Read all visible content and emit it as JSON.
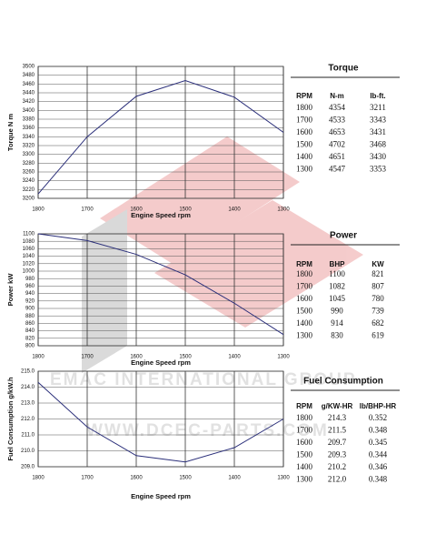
{
  "chart_data": [
    {
      "type": "line",
      "ylabel": "Torque  N m",
      "xlabel": "Engine Speed rpm",
      "x": [
        1800,
        1700,
        1600,
        1500,
        1400,
        1300
      ],
      "xlim": [
        1800,
        1300
      ],
      "xticks": [
        1800,
        1700,
        1600,
        1500,
        1400,
        1300
      ],
      "series": [
        {
          "color": "#2b2f7a",
          "values": [
            3210,
            3340,
            3432,
            3468,
            3430,
            3350
          ]
        }
      ],
      "ylim": [
        3200,
        3500
      ],
      "yticks": [
        3200,
        3220,
        3240,
        3260,
        3280,
        3300,
        3320,
        3340,
        3360,
        3380,
        3400,
        3420,
        3440,
        3460,
        3480,
        3500
      ],
      "grid": true
    },
    {
      "type": "line",
      "ylabel": "Power  kW",
      "xlabel": "Engine Speed rpm",
      "x": [
        1800,
        1700,
        1600,
        1500,
        1400,
        1300
      ],
      "xlim": [
        1800,
        1300
      ],
      "xticks": [
        1800,
        1700,
        1600,
        1500,
        1400,
        1300
      ],
      "series": [
        {
          "color": "#2b2f7a",
          "values": [
            1100,
            1082,
            1045,
            990,
            914,
            830
          ]
        }
      ],
      "ylim": [
        800,
        1100
      ],
      "yticks": [
        800,
        820,
        840,
        860,
        880,
        900,
        920,
        940,
        960,
        980,
        1000,
        1020,
        1040,
        1060,
        1080,
        1100
      ],
      "grid": true
    },
    {
      "type": "line",
      "ylabel": "Fuel Consumption  g/kW.h",
      "xlabel": "Engine Speed rpm",
      "x": [
        1800,
        1700,
        1600,
        1500,
        1400,
        1300
      ],
      "xlim": [
        1800,
        1300
      ],
      "xticks": [
        1800,
        1700,
        1600,
        1500,
        1400,
        1300
      ],
      "series": [
        {
          "color": "#2b2f7a",
          "values": [
            214.3,
            211.5,
            209.7,
            209.3,
            210.2,
            212.0
          ]
        }
      ],
      "ylim": [
        209,
        215
      ],
      "yticks": [
        {
          "value": 209,
          "label": "209.0"
        },
        {
          "value": 210,
          "label": "210.0"
        },
        {
          "value": 211,
          "label": "211.0"
        },
        {
          "value": 212,
          "label": "212.0"
        },
        {
          "value": 213,
          "label": "213.0"
        },
        {
          "value": 214,
          "label": "214.0"
        },
        {
          "value": 215,
          "label": "215.0"
        }
      ],
      "grid": true
    }
  ],
  "tables": [
    {
      "title": "Torque",
      "header": [
        "RPM",
        "N-m",
        "lb-ft."
      ],
      "rows": [
        [
          "1800",
          "4354",
          "3211"
        ],
        [
          "1700",
          "4533",
          "3343"
        ],
        [
          "1600",
          "4653",
          "3431"
        ],
        [
          "1500",
          "4702",
          "3468"
        ],
        [
          "1400",
          "4651",
          "3430"
        ],
        [
          "1300",
          "4547",
          "3353"
        ]
      ]
    },
    {
      "title": "Power",
      "header": [
        "RPM",
        "BHP",
        "KW"
      ],
      "rows": [
        [
          "1800",
          "1100",
          "821"
        ],
        [
          "1700",
          "1082",
          "807"
        ],
        [
          "1600",
          "1045",
          "780"
        ],
        [
          "1500",
          "990",
          "739"
        ],
        [
          "1400",
          "914",
          "682"
        ],
        [
          "1300",
          "830",
          "619"
        ]
      ]
    },
    {
      "title": "Fuel Consumption",
      "header": [
        "RPM",
        "g/KW-HR",
        "lb/BHP-HR"
      ],
      "rows": [
        [
          "1800",
          "214.3",
          "0.352"
        ],
        [
          "1700",
          "211.5",
          "0.348"
        ],
        [
          "1600",
          "209.7",
          "0.345"
        ],
        [
          "1500",
          "209.3",
          "0.344"
        ],
        [
          "1400",
          "210.2",
          "0.346"
        ],
        [
          "1300",
          "212.0",
          "0.348"
        ]
      ]
    }
  ],
  "watermark": [
    "EMAC INTERNATIONAL GROUP",
    "WWW.DCEC-PARTS.COM"
  ]
}
